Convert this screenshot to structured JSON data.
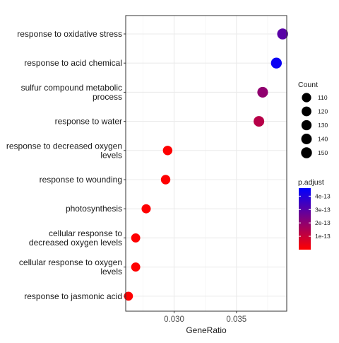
{
  "chart_data": {
    "type": "scatter",
    "xlabel": "GeneRatio",
    "ylabel": "",
    "xlim": [
      0.02612,
      0.03903
    ],
    "x_ticks": [
      {
        "value": 0.03,
        "label": "0.030"
      },
      {
        "value": 0.035,
        "label": "0.035"
      }
    ],
    "categories": [
      "response to oxidative stress",
      "response to acid chemical",
      "sulfur compound metabolic\nprocess",
      "response to water",
      "response to decreased oxygen\nlevels",
      "response to wounding",
      "photosynthesis",
      "cellular response to\ndecreased oxygen levels",
      "cellular response to oxygen\nlevels",
      "response to jasmonic acid"
    ],
    "points": [
      {
        "category": "response to oxidative stress",
        "gene_ratio": 0.0387,
        "count": 150,
        "p_adjust": 3e-13
      },
      {
        "category": "response to acid chemical",
        "gene_ratio": 0.0382,
        "count": 148,
        "p_adjust": 4.4e-13
      },
      {
        "category": "sulfur compound metabolic\nprocess",
        "gene_ratio": 0.0371,
        "count": 144,
        "p_adjust": 2e-13
      },
      {
        "category": "response to water",
        "gene_ratio": 0.0368,
        "count": 143,
        "p_adjust": 1.3e-13
      },
      {
        "category": "response to decreased oxygen\nlevels",
        "gene_ratio": 0.02948,
        "count": 114,
        "p_adjust": 2e-15
      },
      {
        "category": "response to wounding",
        "gene_ratio": 0.02932,
        "count": 113,
        "p_adjust": 2e-15
      },
      {
        "category": "photosynthesis",
        "gene_ratio": 0.02776,
        "count": 107,
        "p_adjust": 2e-15
      },
      {
        "category": "cellular response to\ndecreased oxygen levels",
        "gene_ratio": 0.02692,
        "count": 104,
        "p_adjust": 2e-15
      },
      {
        "category": "cellular response to oxygen\nlevels",
        "gene_ratio": 0.02692,
        "count": 104,
        "p_adjust": 2e-15
      },
      {
        "category": "response to jasmonic acid",
        "gene_ratio": 0.02634,
        "count": 102,
        "p_adjust": 2e-15
      }
    ],
    "size_legend": {
      "title": "Count",
      "breaks": [
        110,
        120,
        130,
        140,
        150
      ],
      "labels": [
        "110",
        "120",
        "130",
        "140",
        "150"
      ]
    },
    "color_legend": {
      "title": "p.adjust",
      "range": [
        0,
        4.6e-13
      ],
      "breaks": [
        1e-13,
        2e-13,
        3e-13,
        4e-13
      ],
      "labels": [
        "1e-13",
        "2e-13",
        "3e-13",
        "4e-13"
      ],
      "low_color": "#ff0000",
      "high_color": "#0000ff"
    },
    "grid": true,
    "legend_position": "right"
  }
}
